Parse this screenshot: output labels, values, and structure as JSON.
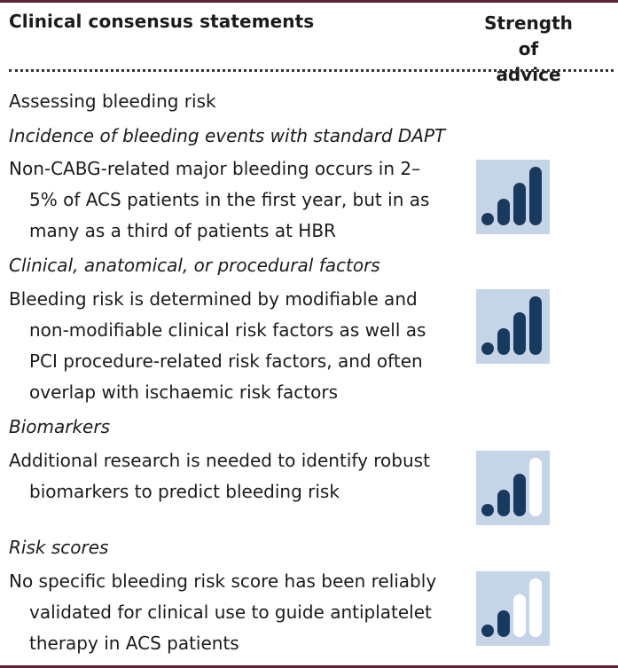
{
  "header": {
    "title": "Clinical consensus statements",
    "strength_line1": "Strength of",
    "strength_line2": "advice"
  },
  "section": {
    "heading": "Assessing bleeding risk"
  },
  "topics": [
    {
      "subheading": "Incidence of bleeding events with standard DAPT",
      "statement_lines": [
        "Non-CABG-related major bleeding occurs in 2–",
        "5% of ACS patients in the first year, but in as",
        "many as a third of patients at HBR"
      ],
      "strength_bars_filled": 4
    },
    {
      "subheading": "Clinical, anatomical, or procedural factors",
      "statement_lines": [
        "Bleeding risk is determined by modifiable and",
        "non-modifiable clinical risk factors as well as",
        "PCI procedure-related risk factors, and often",
        "overlap with ischaemic risk factors"
      ],
      "strength_bars_filled": 4
    },
    {
      "subheading": "Biomarkers",
      "statement_lines": [
        "Additional research is needed to identify robust",
        "biomarkers to predict bleeding risk"
      ],
      "strength_bars_filled": 3
    },
    {
      "subheading": "Risk scores",
      "statement_lines": [
        "No specific bleeding risk score has been reliably",
        "validated for clinical use to guide antiplatelet",
        "therapy in ACS patients"
      ],
      "strength_bars_filled": 2
    }
  ],
  "colors": {
    "border": "#5e2136",
    "icon_background": "#c6d4e8",
    "bar_filled": "#173a5e",
    "bar_empty": "#ffffff"
  },
  "icons": {
    "strength": "signal-strength-icon"
  }
}
